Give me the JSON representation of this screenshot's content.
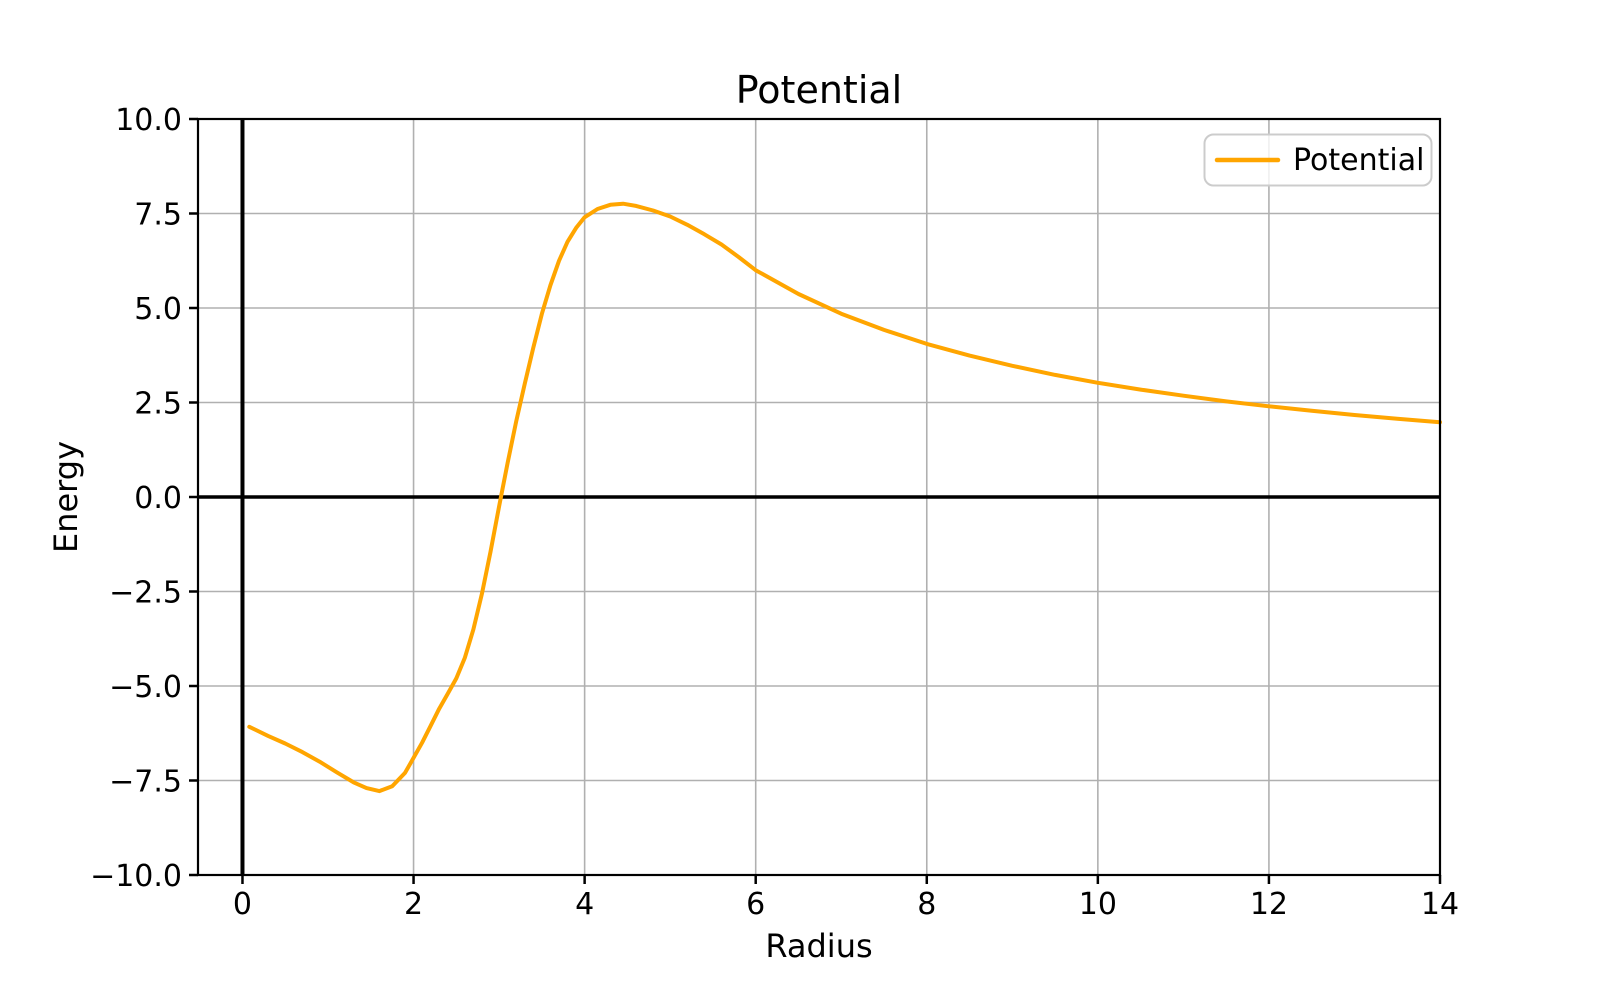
{
  "chart_data": {
    "type": "line",
    "title": "Potential",
    "xlabel": "Radius",
    "ylabel": "Energy",
    "xlim": [
      -0.52,
      14
    ],
    "ylim": [
      -10,
      10
    ],
    "grid": true,
    "grid_color": "#b0b0b0",
    "background_color": "#ffffff",
    "xticks": [
      0,
      2,
      4,
      6,
      8,
      10,
      12,
      14
    ],
    "xtick_labels": [
      "0",
      "2",
      "4",
      "6",
      "8",
      "10",
      "12",
      "14"
    ],
    "yticks": [
      -10,
      -7.5,
      -5,
      -2.5,
      0,
      2.5,
      5,
      7.5,
      10
    ],
    "ytick_labels": [
      "−10.0",
      "−7.5",
      "−5.0",
      "−2.5",
      "0.0",
      "2.5",
      "5.0",
      "7.5",
      "10.0"
    ],
    "reference_lines": {
      "axhline_y": 0,
      "axvline_x": 0,
      "color": "#000000"
    },
    "legend": {
      "position": "upper right",
      "label": "Potential",
      "line_color": "#FFA500"
    },
    "series": [
      {
        "name": "Potential",
        "color": "#FFA500",
        "x": [
          0.08,
          0.3,
          0.5,
          0.7,
          0.9,
          1.1,
          1.3,
          1.45,
          1.6,
          1.75,
          1.9,
          2.0,
          2.1,
          2.2,
          2.3,
          2.4,
          2.5,
          2.6,
          2.7,
          2.8,
          2.9,
          3.0,
          3.1,
          3.2,
          3.3,
          3.4,
          3.5,
          3.6,
          3.7,
          3.8,
          3.9,
          4.0,
          4.15,
          4.3,
          4.45,
          4.6,
          4.8,
          5.0,
          5.2,
          5.4,
          5.6,
          5.8,
          6.0,
          6.5,
          7.0,
          7.5,
          8.0,
          8.5,
          9.0,
          9.5,
          10.0,
          10.5,
          11.0,
          11.5,
          12.0,
          12.5,
          13.0,
          13.5,
          14.0
        ],
        "y": [
          -6.08,
          -6.32,
          -6.52,
          -6.75,
          -7.0,
          -7.28,
          -7.55,
          -7.7,
          -7.78,
          -7.65,
          -7.3,
          -6.9,
          -6.5,
          -6.05,
          -5.6,
          -5.2,
          -4.8,
          -4.25,
          -3.5,
          -2.55,
          -1.45,
          -0.25,
          0.9,
          2.0,
          3.0,
          3.95,
          4.85,
          5.6,
          6.25,
          6.75,
          7.12,
          7.4,
          7.62,
          7.73,
          7.76,
          7.7,
          7.58,
          7.42,
          7.2,
          6.95,
          6.68,
          6.35,
          6.0,
          5.37,
          4.85,
          4.42,
          4.05,
          3.74,
          3.47,
          3.23,
          3.02,
          2.84,
          2.68,
          2.53,
          2.4,
          2.28,
          2.17,
          2.07,
          1.98
        ]
      }
    ],
    "notable_points": {
      "minimum": {
        "x": 1.6,
        "y": -7.8
      },
      "zero_crossing_x": 3.0,
      "maximum": {
        "x": 4.45,
        "y": 7.76
      },
      "end_value": {
        "x": 14,
        "y": 1.98
      }
    }
  }
}
